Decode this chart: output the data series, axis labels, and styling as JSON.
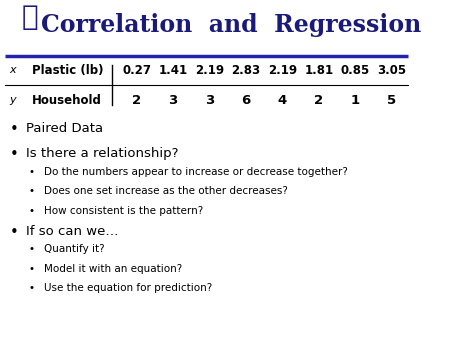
{
  "title": "Correlation  and  Regression",
  "title_fontsize": 17,
  "title_color": "#1a1a7a",
  "title_fontweight": "bold",
  "line_color": "#2222aa",
  "table": {
    "row_labels_left": [
      "x",
      "y"
    ],
    "row_labels_right": [
      "Plastic (lb)",
      "Household"
    ],
    "x_values": [
      "0.27",
      "1.41",
      "2.19",
      "2.83",
      "2.19",
      "1.81",
      "0.85",
      "3.05"
    ],
    "y_values": [
      "2",
      "3",
      "3",
      "6",
      "4",
      "2",
      "1",
      "5"
    ]
  },
  "bullet1": "Paired Data",
  "bullet2": "Is there a relationship?",
  "sub_bullets2": [
    "Do the numbers appear to increase or decrease together?",
    "Does one set increase as the other decreases?",
    "How consistent is the pattern?"
  ],
  "bullet3": "If so can we…",
  "sub_bullets3": [
    "Quantify it?",
    "Model it with an equation?",
    "Use the equation for prediction?"
  ]
}
